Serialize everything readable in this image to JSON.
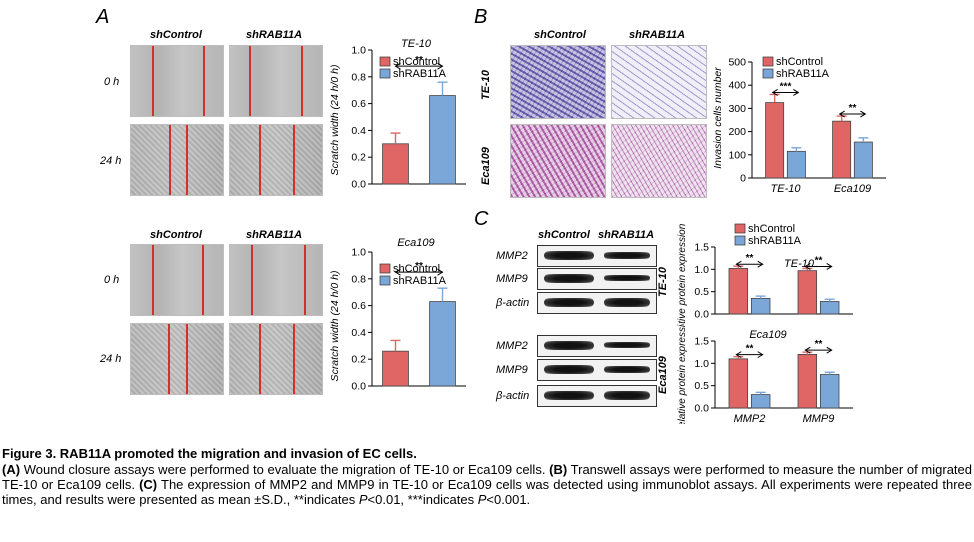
{
  "panels": {
    "A": {
      "letter": "A",
      "col1": "shControl",
      "col2": "shRAB11A",
      "row_0h": "0 h",
      "row_24h": "24 h"
    },
    "B": {
      "letter": "B",
      "col1": "shControl",
      "col2": "shRAB11A",
      "row1": "TE-10",
      "row2": "Eca109"
    },
    "C": {
      "letter": "C",
      "col1": "shControl",
      "col2": "shRAB11A",
      "blot_labels": [
        "MMP2",
        "MMP9",
        "β-actin"
      ],
      "group1": "TE-10",
      "group2": "Eca109"
    }
  },
  "chart_data": [
    {
      "id": "A-TE10",
      "type": "bar",
      "title": "TE-10",
      "ylabel": "Scratch width (24 h/0 h)",
      "categories": [
        "shControl",
        "shRAB11A"
      ],
      "values": [
        0.3,
        0.66
      ],
      "errors": [
        0.08,
        0.1
      ],
      "ylim": [
        0,
        1.0
      ],
      "yticks": [
        "0.0",
        "0.2",
        "0.4",
        "0.6",
        "0.8",
        "1.0"
      ],
      "legend": [
        "shControl",
        "shRAB11A"
      ],
      "significance": "**",
      "colors": [
        "#e06666",
        "#7aa6d8"
      ]
    },
    {
      "id": "A-Eca109",
      "type": "bar",
      "title": "Eca109",
      "ylabel": "Scratch width (24 h/0 h)",
      "categories": [
        "shControl",
        "shRAB11A"
      ],
      "values": [
        0.26,
        0.63
      ],
      "errors": [
        0.08,
        0.1
      ],
      "ylim": [
        0,
        1.0
      ],
      "yticks": [
        "0.0",
        "0.2",
        "0.4",
        "0.6",
        "0.8",
        "1.0"
      ],
      "legend": [
        "shControl",
        "shRAB11A"
      ],
      "significance": "**",
      "colors": [
        "#e06666",
        "#7aa6d8"
      ]
    },
    {
      "id": "B-invasion",
      "type": "bar",
      "ylabel": "Invasion cells number",
      "categories": [
        "TE-10",
        "Eca109"
      ],
      "series": [
        {
          "name": "shControl",
          "values": [
            325,
            245
          ],
          "errors": [
            35,
            22
          ]
        },
        {
          "name": "shRAB11A",
          "values": [
            115,
            155
          ],
          "errors": [
            15,
            18
          ]
        }
      ],
      "significance": [
        "***",
        "**"
      ],
      "ylim": [
        0,
        500
      ],
      "yticks": [
        "0",
        "100",
        "200",
        "300",
        "400",
        "500"
      ],
      "colors": [
        "#e06666",
        "#7aa6d8"
      ]
    },
    {
      "id": "C-TE10",
      "type": "bar",
      "title": "TE-10",
      "ylabel": "Relative protein expression",
      "categories": [
        "MMP2",
        "MMP9"
      ],
      "series": [
        {
          "name": "shControl",
          "values": [
            1.02,
            0.97
          ],
          "errors": [
            0.05,
            0.05
          ]
        },
        {
          "name": "shRAB11A",
          "values": [
            0.35,
            0.28
          ],
          "errors": [
            0.05,
            0.05
          ]
        }
      ],
      "significance": [
        "**",
        "**"
      ],
      "ylim": [
        0,
        1.5
      ],
      "yticks": [
        "0.0",
        "0.5",
        "1.0",
        "1.5"
      ],
      "colors": [
        "#e06666",
        "#7aa6d8"
      ]
    },
    {
      "id": "C-Eca109",
      "type": "bar",
      "title": "Eca109",
      "ylabel": "Relative protein expression",
      "categories": [
        "MMP2",
        "MMP9"
      ],
      "series": [
        {
          "name": "shControl",
          "values": [
            1.1,
            1.2
          ],
          "errors": [
            0.05,
            0.05
          ]
        },
        {
          "name": "shRAB11A",
          "values": [
            0.3,
            0.75
          ],
          "errors": [
            0.05,
            0.05
          ]
        }
      ],
      "significance": [
        "**",
        "**"
      ],
      "ylim": [
        0,
        1.5
      ],
      "yticks": [
        "0.0",
        "0.5",
        "1.0",
        "1.5"
      ],
      "colors": [
        "#e06666",
        "#7aa6d8"
      ]
    }
  ],
  "caption": {
    "title": "Figure 3. RAB11A promoted the migration and invasion of EC cells.",
    "line1_a_label": "(A)",
    "line1_a_text": " Wound closure assays were performed to evaluate the migration of TE-10 or Eca109 cells. ",
    "line1_b_label": "(B)",
    "line1_b_text": " Transwell assays were performed to measure the number of migrated TE-10 or Eca109 cells. ",
    "line1_c_label": "(C)",
    "line1_c_text": " The expression of MMP2 and MMP9 in TE-10 or Eca109 cells was detected using immunoblot assays. All experiments were repeated three times, and results were presented as mean ±S.D., **indicates ",
    "p1": "P",
    "p1_rest": "<0.01, ***indicates ",
    "p2": "P",
    "p2_rest": "<0.001."
  }
}
